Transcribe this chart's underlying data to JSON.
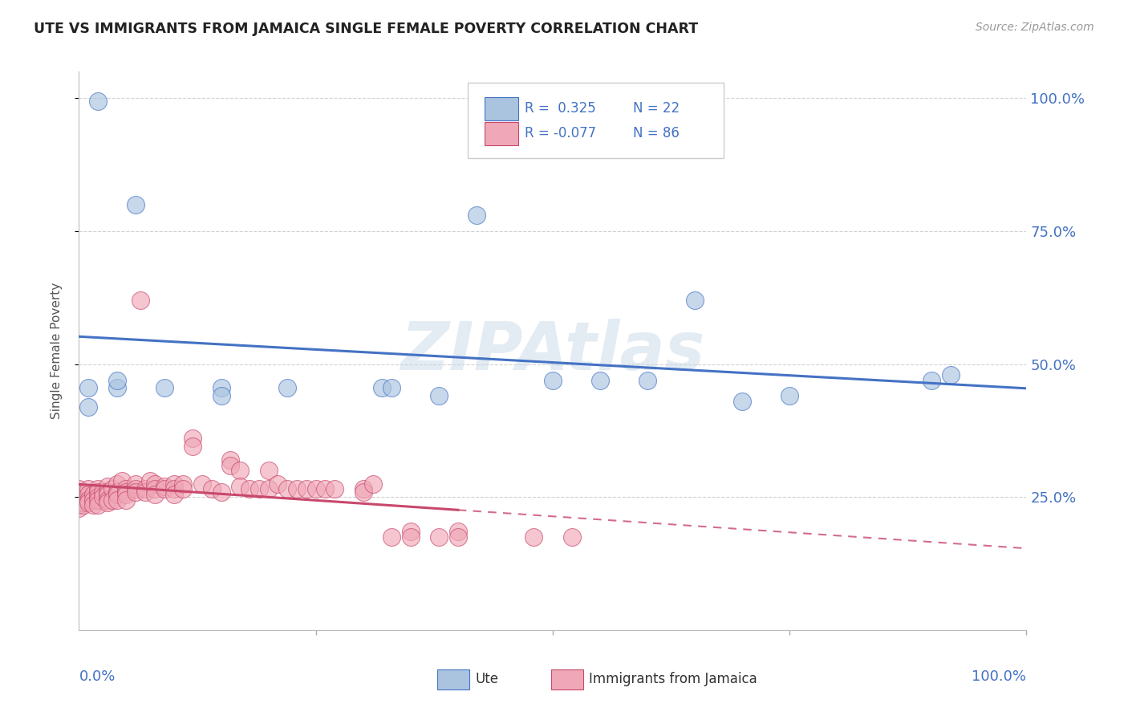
{
  "title": "UTE VS IMMIGRANTS FROM JAMAICA SINGLE FEMALE POVERTY CORRELATION CHART",
  "source": "Source: ZipAtlas.com",
  "ylabel": "Single Female Poverty",
  "ytick_labels": [
    "25.0%",
    "50.0%",
    "75.0%",
    "100.0%"
  ],
  "ytick_values": [
    0.25,
    0.5,
    0.75,
    1.0
  ],
  "xlim": [
    0.0,
    1.0
  ],
  "ylim": [
    0.0,
    1.05
  ],
  "ute_color": "#aac4e0",
  "jamaica_color": "#f0a8b8",
  "ute_R": 0.325,
  "ute_N": 22,
  "jamaica_R": -0.077,
  "jamaica_N": 86,
  "ute_line_color": "#4472c4",
  "jamaica_line_color": "#c8486c",
  "watermark_text": "ZIPAtlas",
  "watermark_color": "#c8d8e8",
  "grid_color": "#cccccc",
  "ute_scatter_x": [
    0.02,
    0.01,
    0.01,
    0.04,
    0.04,
    0.06,
    0.09,
    0.15,
    0.15,
    0.22,
    0.32,
    0.33,
    0.42,
    0.55,
    0.65,
    0.7,
    0.9,
    0.92,
    0.6,
    0.75,
    0.5,
    0.38
  ],
  "ute_scatter_y": [
    0.995,
    0.455,
    0.42,
    0.455,
    0.47,
    0.8,
    0.455,
    0.455,
    0.44,
    0.455,
    0.455,
    0.455,
    0.78,
    0.47,
    0.62,
    0.43,
    0.47,
    0.48,
    0.47,
    0.44,
    0.47,
    0.44
  ],
  "jamaica_scatter_x": [
    0.0,
    0.0,
    0.0,
    0.0,
    0.0,
    0.0,
    0.005,
    0.005,
    0.01,
    0.01,
    0.01,
    0.01,
    0.015,
    0.015,
    0.015,
    0.02,
    0.02,
    0.02,
    0.02,
    0.02,
    0.025,
    0.025,
    0.03,
    0.03,
    0.03,
    0.03,
    0.03,
    0.035,
    0.035,
    0.04,
    0.04,
    0.04,
    0.04,
    0.045,
    0.05,
    0.05,
    0.05,
    0.05,
    0.06,
    0.06,
    0.06,
    0.065,
    0.07,
    0.07,
    0.075,
    0.08,
    0.08,
    0.08,
    0.09,
    0.09,
    0.1,
    0.1,
    0.1,
    0.11,
    0.11,
    0.12,
    0.12,
    0.13,
    0.14,
    0.15,
    0.16,
    0.16,
    0.17,
    0.17,
    0.18,
    0.19,
    0.2,
    0.2,
    0.21,
    0.22,
    0.23,
    0.24,
    0.25,
    0.26,
    0.27,
    0.3,
    0.3,
    0.31,
    0.33,
    0.35,
    0.35,
    0.38,
    0.4,
    0.4,
    0.48,
    0.52
  ],
  "jamaica_scatter_y": [
    0.265,
    0.255,
    0.245,
    0.24,
    0.235,
    0.23,
    0.24,
    0.235,
    0.265,
    0.255,
    0.245,
    0.24,
    0.255,
    0.245,
    0.235,
    0.265,
    0.26,
    0.25,
    0.245,
    0.235,
    0.26,
    0.25,
    0.27,
    0.26,
    0.255,
    0.245,
    0.24,
    0.265,
    0.245,
    0.275,
    0.26,
    0.255,
    0.245,
    0.28,
    0.265,
    0.26,
    0.255,
    0.245,
    0.275,
    0.265,
    0.26,
    0.62,
    0.265,
    0.26,
    0.28,
    0.275,
    0.265,
    0.255,
    0.27,
    0.265,
    0.275,
    0.265,
    0.255,
    0.275,
    0.265,
    0.36,
    0.345,
    0.275,
    0.265,
    0.26,
    0.32,
    0.31,
    0.3,
    0.27,
    0.265,
    0.265,
    0.3,
    0.265,
    0.275,
    0.265,
    0.265,
    0.265,
    0.265,
    0.265,
    0.265,
    0.265,
    0.26,
    0.275,
    0.175,
    0.185,
    0.175,
    0.175,
    0.185,
    0.175,
    0.175,
    0.175
  ]
}
